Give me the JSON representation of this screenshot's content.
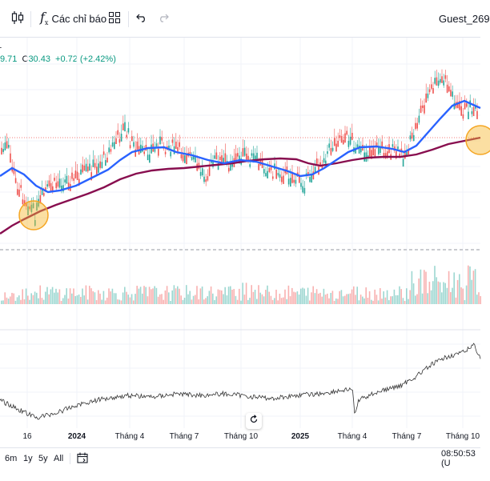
{
  "toolbar": {
    "indicators_label": "Các chỉ báo",
    "username": "Guest_269",
    "icons": [
      "candlestick-icon",
      "function-icon",
      "grid-layout-icon",
      "undo-icon",
      "redo-icon"
    ]
  },
  "legend": {
    "left_cut_marker": "Ł",
    "low_value": "9.71",
    "close_label": "C",
    "close_value": "30.43",
    "change": "+0.72 (+2.42%)"
  },
  "xaxis": {
    "labels": [
      "16",
      "2024",
      "Tháng 4",
      "Tháng 7",
      "Tháng 10",
      "2025",
      "Tháng 4",
      "Tháng 7",
      "Tháng 10"
    ]
  },
  "bottombar": {
    "ranges": [
      "6m",
      "1y",
      "5y",
      "All"
    ],
    "time": "08:50:53 (U"
  },
  "colors": {
    "up": "#26a69a",
    "down": "#ef5350",
    "ma_fast": "#2962ff",
    "ma_slow": "#880e4f",
    "highlight": "#f7b731",
    "compare_line": "#333333"
  }
}
